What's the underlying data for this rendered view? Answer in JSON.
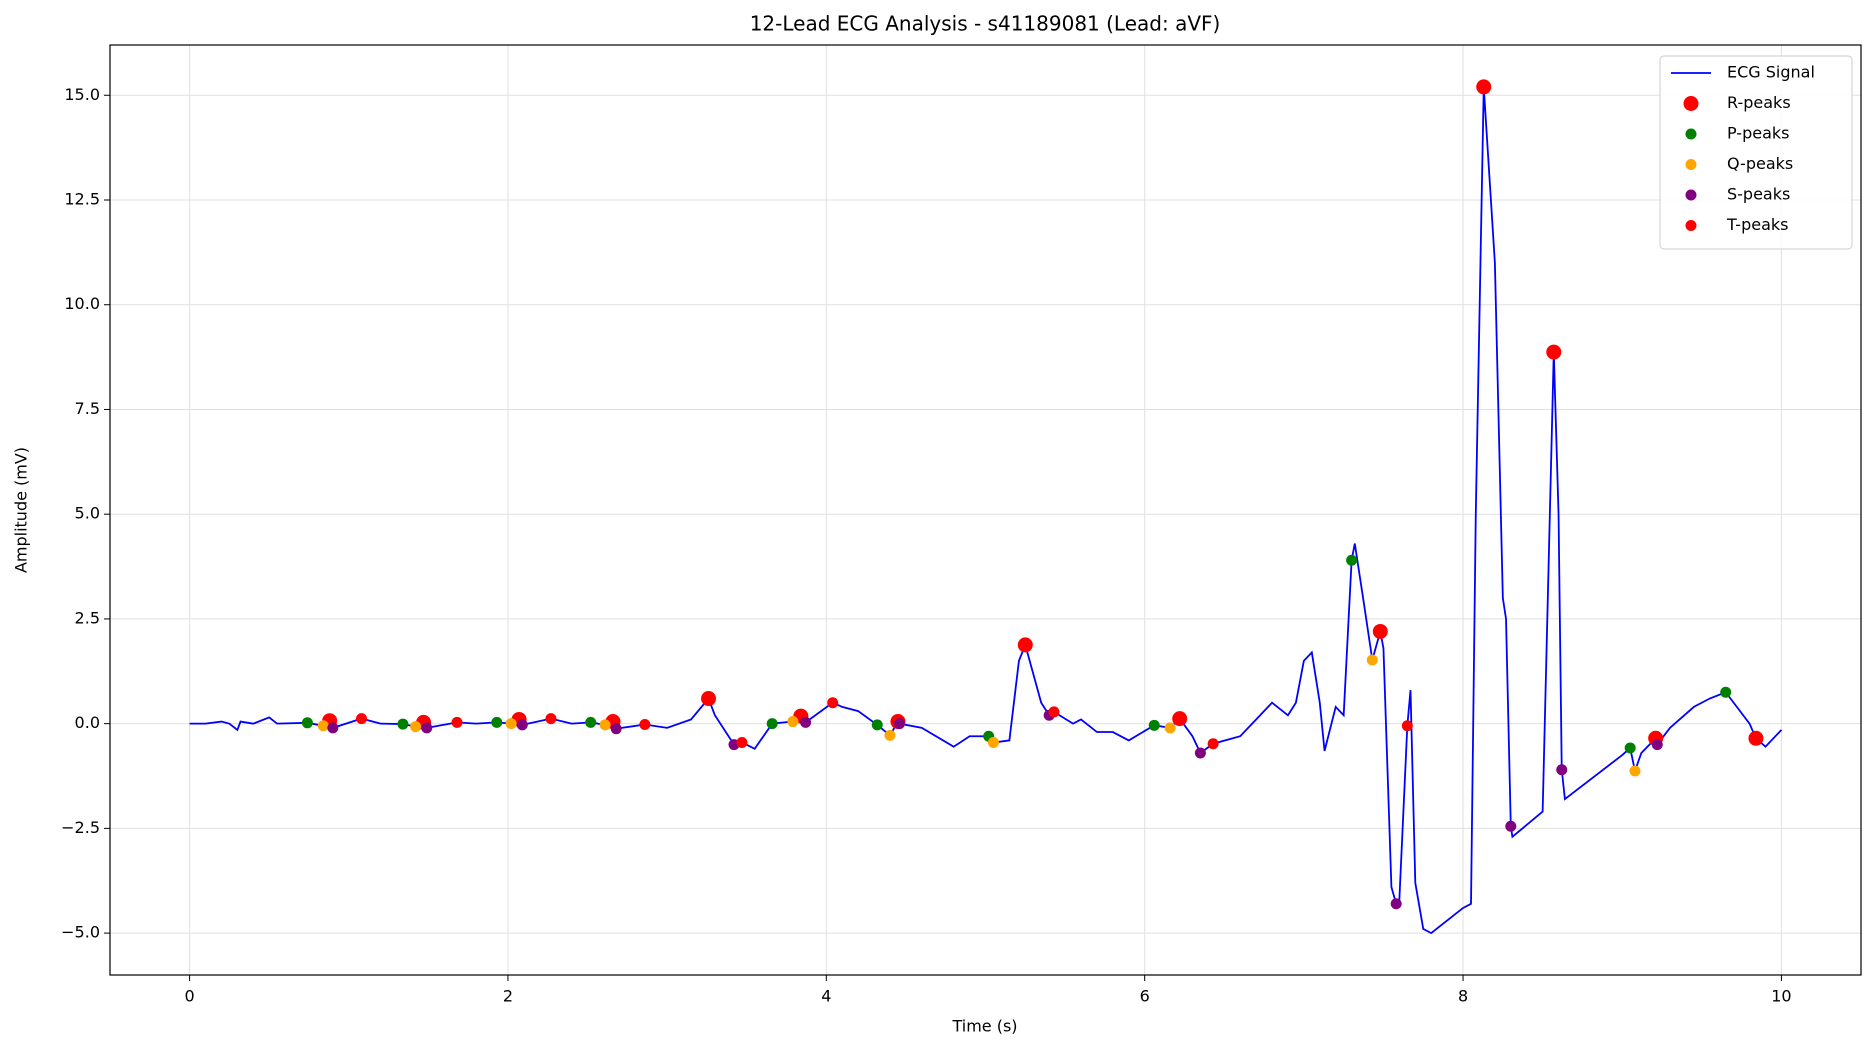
{
  "chart_data": {
    "type": "line",
    "title": "12-Lead ECG Analysis - s41189081 (Lead: aVF)",
    "x_label": "Time (s)",
    "y_label": "Amplitude (mV)",
    "xlim": [
      -0.5,
      10.5
    ],
    "ylim": [
      -6.0,
      16.2
    ],
    "xticks": [
      0,
      2,
      4,
      6,
      8,
      10
    ],
    "yticks": [
      {
        "value": -5,
        "label": "−5.0"
      },
      {
        "value": -2.5,
        "label": "−2.5"
      },
      {
        "value": 0,
        "label": "0.0"
      },
      {
        "value": 2.5,
        "label": "2.5"
      },
      {
        "value": 5,
        "label": "5.0"
      },
      {
        "value": 7.5,
        "label": "7.5"
      },
      {
        "value": 10,
        "label": "10.0"
      },
      {
        "value": 12.5,
        "label": "12.5"
      },
      {
        "value": 15,
        "label": "15.0"
      }
    ],
    "grid": true,
    "legend": "upper right",
    "series": [
      {
        "name": "ECG Signal",
        "color": "#0000ff",
        "type": "line",
        "x": [
          0,
          0.1,
          0.2,
          0.25,
          0.3,
          0.32,
          0.4,
          0.5,
          0.55,
          0.74,
          0.84,
          0.88,
          0.9,
          1.08,
          1.2,
          1.34,
          1.42,
          1.47,
          1.49,
          1.68,
          1.8,
          1.93,
          2.02,
          2.07,
          2.09,
          2.27,
          2.4,
          2.52,
          2.61,
          2.66,
          2.68,
          2.86,
          3.0,
          3.15,
          3.26,
          3.3,
          3.42,
          3.47,
          3.55,
          3.66,
          3.79,
          3.84,
          3.87,
          4.04,
          4.1,
          4.2,
          4.32,
          4.4,
          4.45,
          4.46,
          4.6,
          4.8,
          4.9,
          5.02,
          5.05,
          5.15,
          5.21,
          5.25,
          5.35,
          5.4,
          5.43,
          5.55,
          5.6,
          5.7,
          5.8,
          5.9,
          6.06,
          6.16,
          6.22,
          6.3,
          6.35,
          6.43,
          6.6,
          6.7,
          6.8,
          6.9,
          6.95,
          7.0,
          7.05,
          7.1,
          7.13,
          7.2,
          7.25,
          7.3,
          7.32,
          7.38,
          7.43,
          7.48,
          7.5,
          7.55,
          7.58,
          7.6,
          7.65,
          7.67,
          7.7,
          7.75,
          7.8,
          8.0,
          8.05,
          8.08,
          8.13,
          8.2,
          8.25,
          8.27,
          8.3,
          8.31,
          8.5,
          8.57,
          8.6,
          8.62,
          8.64,
          9.0,
          9.05,
          9.08,
          9.12,
          9.21,
          9.22,
          9.3,
          9.45,
          9.55,
          9.65,
          9.72,
          9.8,
          9.84,
          9.9,
          10.0
        ],
        "values": [
          0,
          0,
          0.05,
          0,
          -0.15,
          0.05,
          0,
          0.15,
          0,
          0.02,
          -0.05,
          0.07,
          -0.1,
          0.12,
          0,
          -0.01,
          -0.07,
          0.03,
          -0.1,
          0.03,
          0,
          0.03,
          0,
          0.1,
          -0.03,
          0.12,
          0,
          0.03,
          -0.03,
          0.05,
          -0.12,
          -0.02,
          -0.1,
          0.1,
          0.6,
          0.2,
          -0.5,
          -0.45,
          -0.6,
          0,
          0.05,
          0.18,
          0.03,
          0.5,
          0.4,
          0.3,
          -0.03,
          -0.28,
          0.05,
          0,
          -0.1,
          -0.55,
          -0.3,
          -0.3,
          -0.45,
          -0.4,
          1.5,
          1.88,
          0.5,
          0.2,
          0.28,
          0,
          0.1,
          -0.2,
          -0.2,
          -0.4,
          -0.04,
          -0.1,
          0.12,
          -0.3,
          -0.7,
          -0.48,
          -0.3,
          0.1,
          0.5,
          0.2,
          0.5,
          1.5,
          1.7,
          0.5,
          -0.65,
          0.4,
          0.2,
          3.9,
          4.3,
          2.8,
          1.52,
          2.2,
          1.8,
          -3.9,
          -4.3,
          -4.2,
          -0.05,
          0.8,
          -3.8,
          -4.9,
          -5.0,
          -4.4,
          -4.3,
          5,
          15.2,
          11,
          3,
          2.5,
          -2.45,
          -2.7,
          -2.1,
          8.87,
          5,
          -1.1,
          -1.8,
          -0.75,
          -0.58,
          -1.13,
          -0.7,
          -0.35,
          -0.5,
          -0.1,
          0.4,
          0.6,
          0.75,
          0.4,
          0,
          -0.35,
          -0.55,
          -0.15
        ]
      },
      {
        "name": "R-peaks",
        "color": "#ff0000",
        "type": "scatter",
        "x": [
          0.88,
          1.47,
          2.07,
          2.66,
          3.26,
          3.84,
          4.45,
          5.25,
          6.22,
          7.48,
          8.13,
          8.57,
          9.21,
          9.84
        ],
        "values": [
          0.07,
          0.03,
          0.1,
          0.05,
          0.6,
          0.18,
          0.05,
          1.88,
          0.12,
          2.2,
          15.2,
          8.87,
          -0.35,
          -0.35
        ]
      },
      {
        "name": "P-peaks",
        "color": "#008000",
        "type": "scatter",
        "x": [
          0.74,
          1.34,
          1.93,
          2.52,
          3.66,
          4.32,
          5.02,
          6.06,
          7.3,
          9.05,
          9.65
        ],
        "values": [
          0.02,
          -0.01,
          0.03,
          0.03,
          0,
          -0.03,
          -0.3,
          -0.04,
          3.9,
          -0.58,
          0.75
        ]
      },
      {
        "name": "Q-peaks",
        "color": "#ffa500",
        "type": "scatter",
        "x": [
          0.84,
          1.42,
          2.02,
          2.61,
          3.79,
          4.4,
          5.05,
          6.16,
          7.43,
          9.08
        ],
        "values": [
          -0.05,
          -0.07,
          0,
          -0.03,
          0.05,
          -0.28,
          -0.45,
          -0.1,
          1.52,
          -1.13
        ]
      },
      {
        "name": "S-peaks",
        "color": "#800080",
        "type": "scatter",
        "x": [
          0.9,
          1.49,
          2.09,
          2.68,
          3.42,
          3.87,
          4.46,
          5.4,
          6.35,
          7.58,
          8.3,
          8.62,
          9.22
        ],
        "values": [
          -0.1,
          -0.1,
          -0.03,
          -0.12,
          -0.5,
          0.03,
          0,
          0.2,
          -0.7,
          -4.3,
          -2.45,
          -1.1,
          -0.5
        ]
      },
      {
        "name": "T-peaks",
        "color": "#ff0000",
        "type": "scatter",
        "x": [
          1.08,
          1.68,
          2.27,
          2.86,
          3.47,
          4.04,
          5.43,
          6.43,
          7.65
        ],
        "values": [
          0.12,
          0.03,
          0.12,
          -0.02,
          -0.45,
          0.5,
          0.28,
          -0.48,
          -0.05
        ]
      }
    ]
  }
}
